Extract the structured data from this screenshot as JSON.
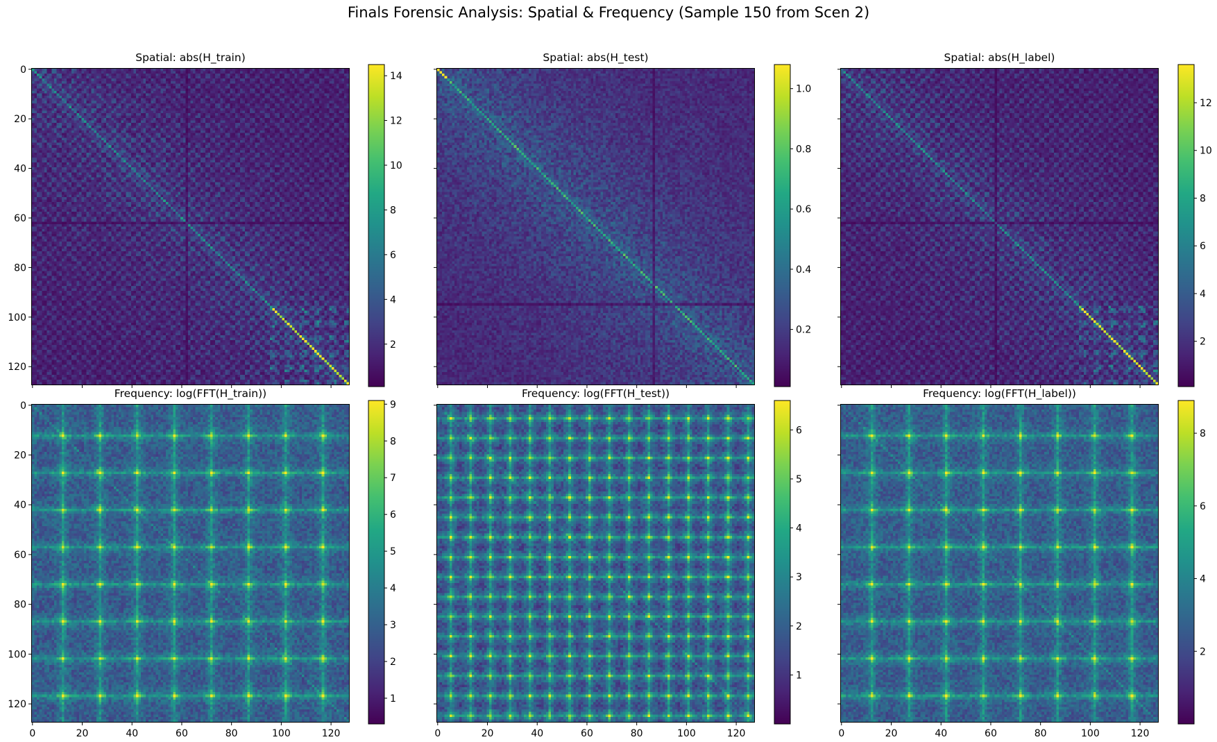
{
  "title": "Finals Forensic Analysis: Spatial & Frequency (Sample 150 from Scen 2)",
  "colors": {
    "colormap": "viridis",
    "background": "#ffffff",
    "axes": "#000000"
  },
  "chart_data": [
    {
      "type": "heatmap",
      "title": "Spatial: abs(H_train)",
      "size": 128,
      "pattern": "spatial-train",
      "xlim": [
        0,
        127
      ],
      "ylim": [
        127,
        0
      ],
      "xticks": [],
      "yticks": [
        0,
        20,
        40,
        60,
        80,
        100,
        120
      ],
      "colorbar": {
        "range": [
          0.1,
          14.5
        ],
        "ticks": [
          2,
          4,
          6,
          8,
          10,
          12,
          14
        ]
      }
    },
    {
      "type": "heatmap",
      "title": "Spatial: abs(H_test)",
      "size": 128,
      "pattern": "spatial-test",
      "xlim": [
        0,
        127
      ],
      "ylim": [
        127,
        0
      ],
      "xticks": [],
      "yticks": [],
      "colorbar": {
        "range": [
          0.01,
          1.08
        ],
        "ticks": [
          0.2,
          0.4,
          0.6,
          0.8,
          1.0
        ]
      }
    },
    {
      "type": "heatmap",
      "title": "Spatial: abs(H_label)",
      "size": 128,
      "pattern": "spatial-label",
      "xlim": [
        0,
        127
      ],
      "ylim": [
        127,
        0
      ],
      "xticks": [],
      "yticks": [],
      "colorbar": {
        "range": [
          0.1,
          13.6
        ],
        "ticks": [
          2,
          4,
          6,
          8,
          10,
          12
        ]
      }
    },
    {
      "type": "heatmap",
      "title": "Frequency: log(FFT(H_train))",
      "size": 128,
      "pattern": "freq-train",
      "xlim": [
        0,
        127
      ],
      "ylim": [
        127,
        0
      ],
      "xticks": [
        0,
        20,
        40,
        60,
        80,
        100,
        120
      ],
      "yticks": [
        0,
        20,
        40,
        60,
        80,
        100,
        120
      ],
      "colorbar": {
        "range": [
          0.3,
          9.1
        ],
        "ticks": [
          1,
          2,
          3,
          4,
          5,
          6,
          7,
          8,
          9
        ]
      }
    },
    {
      "type": "heatmap",
      "title": "Frequency: log(FFT(H_test))",
      "size": 128,
      "pattern": "freq-test",
      "xlim": [
        0,
        127
      ],
      "ylim": [
        127,
        0
      ],
      "xticks": [
        0,
        20,
        40,
        60,
        80,
        100,
        120
      ],
      "yticks": [],
      "colorbar": {
        "range": [
          0.0,
          6.6
        ],
        "ticks": [
          1,
          2,
          3,
          4,
          5,
          6
        ]
      }
    },
    {
      "type": "heatmap",
      "title": "Frequency: log(FFT(H_label))",
      "size": 128,
      "pattern": "freq-label",
      "xlim": [
        0,
        127
      ],
      "ylim": [
        127,
        0
      ],
      "xticks": [
        0,
        20,
        40,
        60,
        80,
        100,
        120
      ],
      "yticks": [],
      "colorbar": {
        "range": [
          0.0,
          8.9
        ],
        "ticks": [
          2,
          4,
          6,
          8
        ]
      }
    }
  ]
}
